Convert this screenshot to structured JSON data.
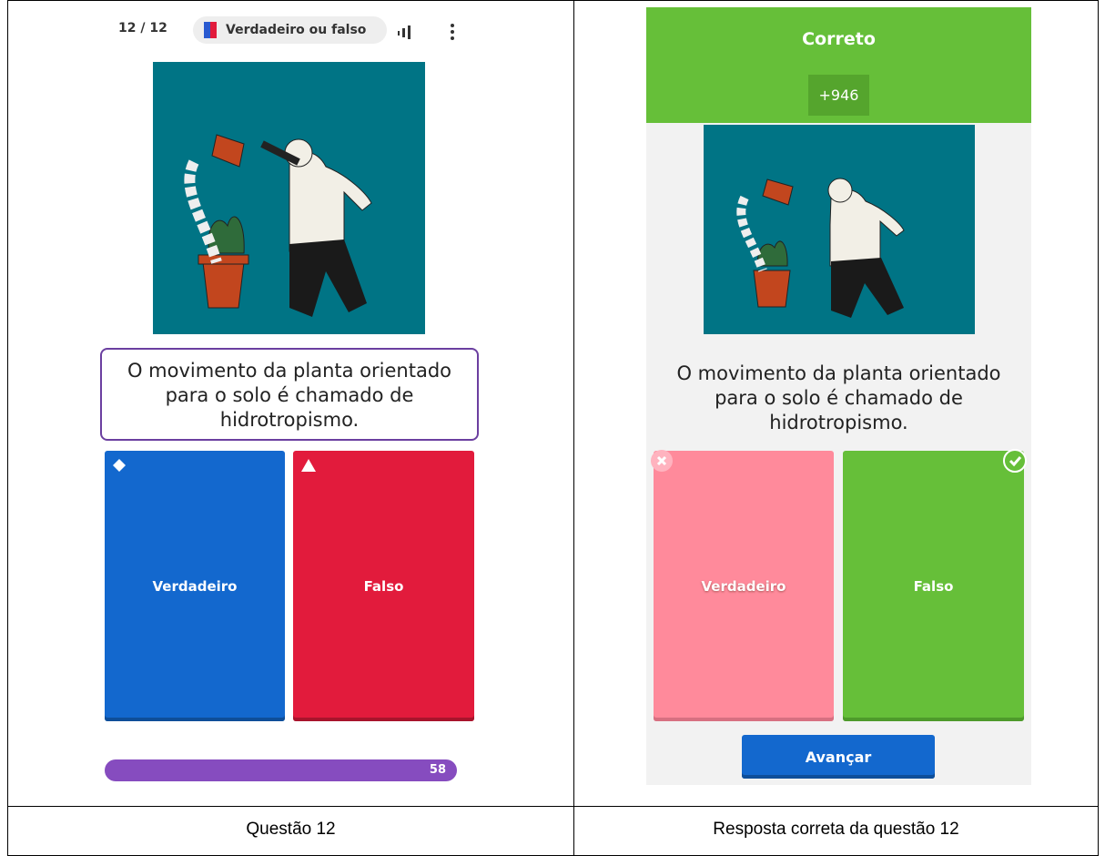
{
  "left": {
    "counter": "12 / 12",
    "mode": "Verdadeiro ou falso",
    "question": [
      "O movimento da planta orientado",
      "para o solo é chamado de",
      "hidrotropismo."
    ],
    "answers": [
      "Verdadeiro",
      "Falso"
    ],
    "progress": 58
  },
  "right": {
    "status": "Correto",
    "points": "+946",
    "question": [
      "O movimento da planta orientado",
      "para o solo é chamado de",
      "hidrotropismo."
    ],
    "answers": [
      "Verdadeiro",
      "Falso"
    ],
    "next": "Avançar"
  },
  "captions": [
    "Questão 12",
    "Resposta correta da questão 12"
  ]
}
